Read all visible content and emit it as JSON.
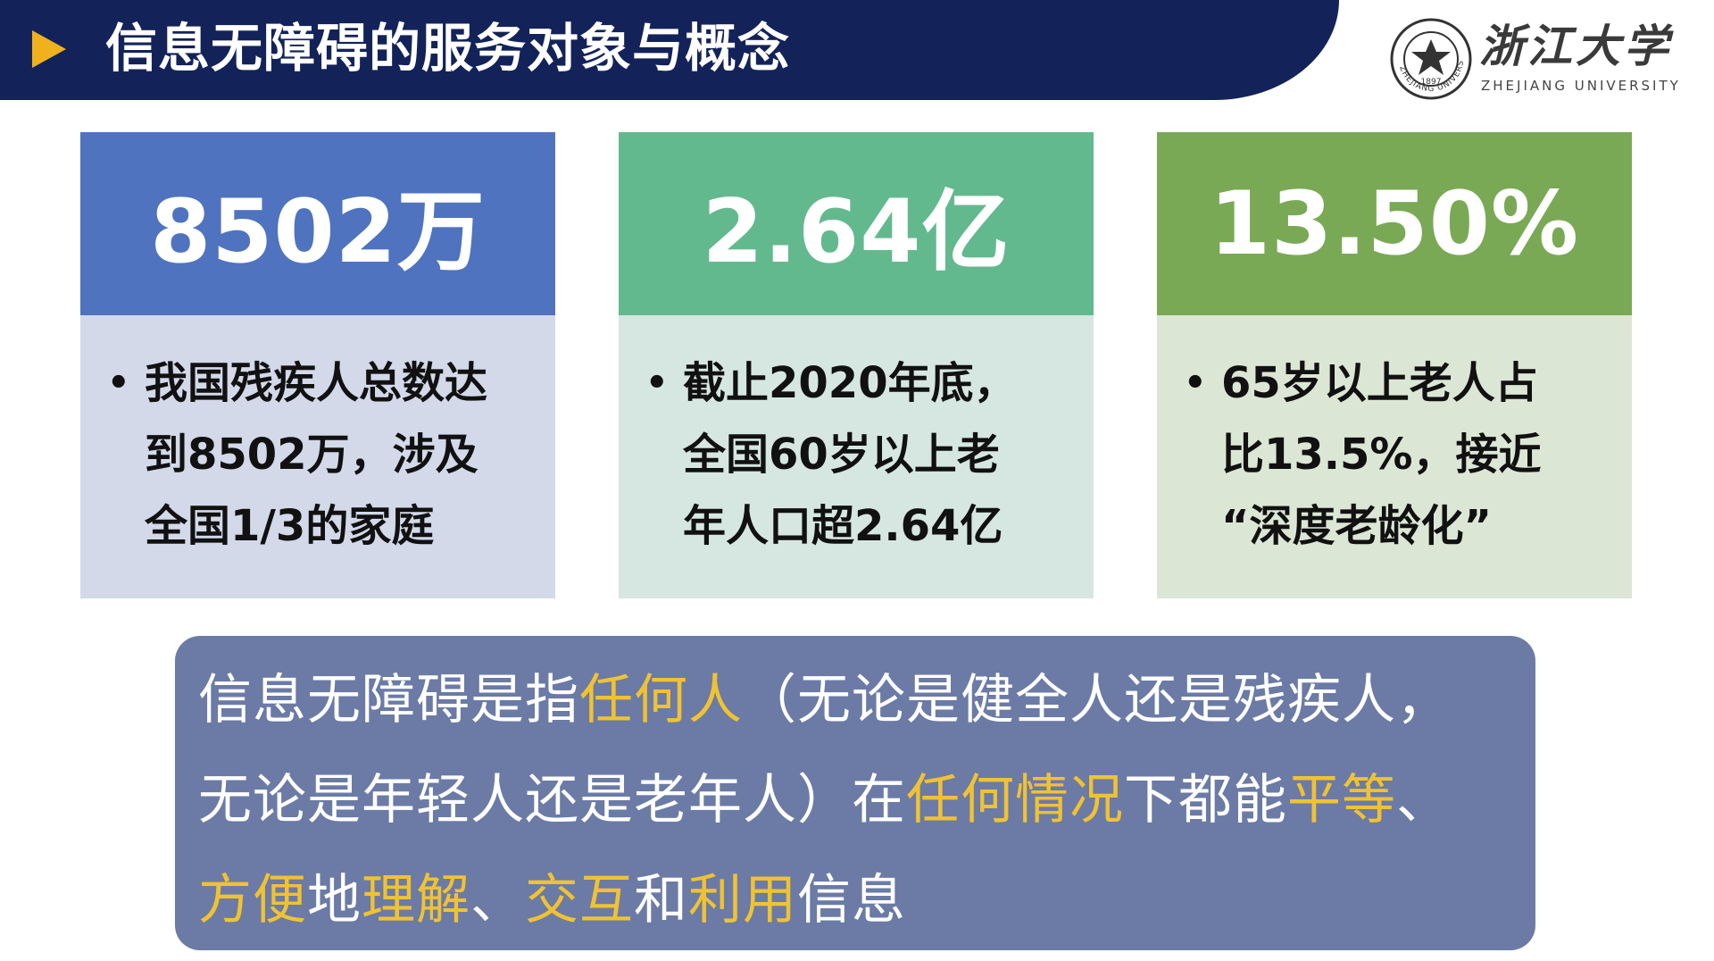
{
  "header": {
    "title": "信息无障碍的服务对象与概念",
    "icon": "play-triangle-icon",
    "accent_color": "#f0b21c",
    "background_color": "#13235a"
  },
  "logo": {
    "name_cn": "浙江大学",
    "name_en": "ZHEJIANG UNIVERSITY",
    "seal_text": "ZHEJIANG UNIVERSITY",
    "seal_year": "1897"
  },
  "cards": [
    {
      "stat": "8502万",
      "top_color": "#4f73bf",
      "body_color": "#d3d9e9",
      "lines": [
        "我国残疾人总数达",
        "到8502万，涉及",
        "全国1/3的家庭"
      ]
    },
    {
      "stat": "2.64亿",
      "top_color": "#63b98e",
      "body_color": "#d6e7e2",
      "lines": [
        "截止2020年底，",
        "全国60岁以上老",
        "年人口超2.64亿"
      ]
    },
    {
      "stat": "13.50%",
      "top_color": "#7aa955",
      "body_color": "#dce6d5",
      "lines": [
        "65岁以上老人占",
        "比13.5%，接近",
        "“深度老龄化”"
      ]
    }
  ],
  "summary": {
    "background_color": "#6b7ba6",
    "highlight_color": "#f0c233",
    "line1": [
      {
        "text": "信息无障碍是指",
        "hl": false
      },
      {
        "text": "任何人",
        "hl": true
      },
      {
        "text": "（无论是健全人还是残疾人，",
        "hl": false
      }
    ],
    "line2": [
      {
        "text": "无论是年轻人还是老年人）在",
        "hl": false
      },
      {
        "text": "任何情况",
        "hl": true
      },
      {
        "text": "下都能",
        "hl": false
      },
      {
        "text": "平等",
        "hl": true
      },
      {
        "text": "、",
        "hl": false
      }
    ],
    "line3": [
      {
        "text": "方便",
        "hl": true
      },
      {
        "text": "地",
        "hl": false
      },
      {
        "text": "理解",
        "hl": true
      },
      {
        "text": "、",
        "hl": false
      },
      {
        "text": "交互",
        "hl": true
      },
      {
        "text": "和",
        "hl": false
      },
      {
        "text": "利用",
        "hl": true
      },
      {
        "text": "信息",
        "hl": false
      }
    ]
  }
}
